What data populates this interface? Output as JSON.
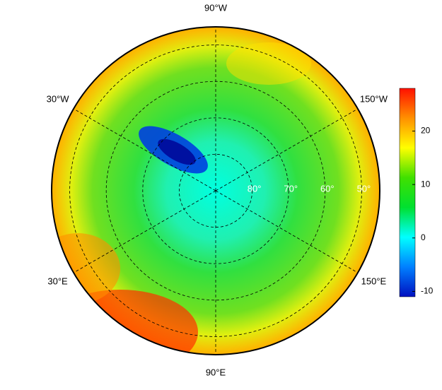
{
  "map": {
    "lon_labels": [
      {
        "value": -90,
        "label": "90°W"
      },
      {
        "value": -30,
        "label": "30°W"
      },
      {
        "value": -150,
        "label": "150°W"
      },
      {
        "value": 30,
        "label": "30°E"
      },
      {
        "value": 150,
        "label": "150°E"
      },
      {
        "value": 90,
        "label": "90°E"
      }
    ],
    "lat_labels": [
      {
        "value": 80,
        "label": "80°"
      },
      {
        "value": 70,
        "label": "70°"
      },
      {
        "value": 60,
        "label": "60°"
      },
      {
        "value": 50,
        "label": "50°"
      }
    ]
  },
  "colorbar": {
    "range": [
      -11,
      28
    ],
    "ticks": [
      -10,
      0,
      10,
      20
    ],
    "colormap": [
      "#0010c0",
      "#0080ff",
      "#00ffff",
      "#00e030",
      "#40e000",
      "#ffff00",
      "#ff9000",
      "#ff1000"
    ]
  }
}
